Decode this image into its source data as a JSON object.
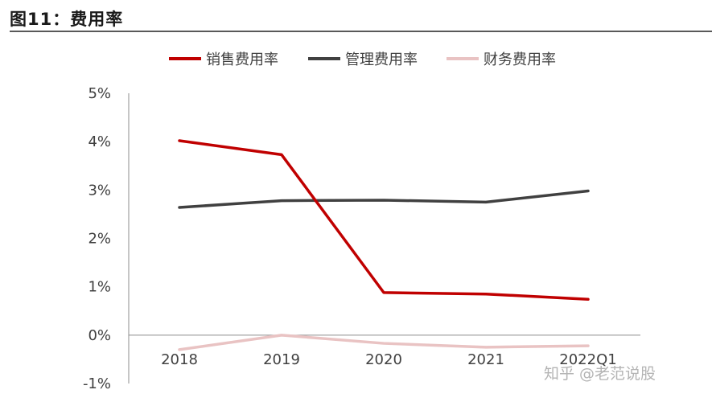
{
  "figure": {
    "title": "图11：费用率",
    "watermark": "知乎 @老范说股"
  },
  "chart_data": {
    "type": "line",
    "title": "",
    "xlabel": "",
    "ylabel": "",
    "categories": [
      "2018",
      "2019",
      "2020",
      "2021",
      "2022Q1"
    ],
    "ylim": [
      -1,
      5
    ],
    "yticks": [
      -1,
      0,
      1,
      2,
      3,
      4,
      5
    ],
    "ytick_labels": [
      "-1%",
      "0%",
      "1%",
      "2%",
      "3%",
      "4%",
      "5%"
    ],
    "grid": false,
    "legend_position": "top",
    "series": [
      {
        "name": "销售费用率",
        "color": "#c00000",
        "values": [
          4.02,
          3.73,
          0.88,
          0.85,
          0.74
        ]
      },
      {
        "name": "管理费用率",
        "color": "#404040",
        "values": [
          2.64,
          2.78,
          2.79,
          2.75,
          2.98
        ]
      },
      {
        "name": "财务费用率",
        "color": "#e9c3c3",
        "values": [
          -0.3,
          0.0,
          -0.17,
          -0.25,
          -0.22
        ]
      }
    ]
  }
}
